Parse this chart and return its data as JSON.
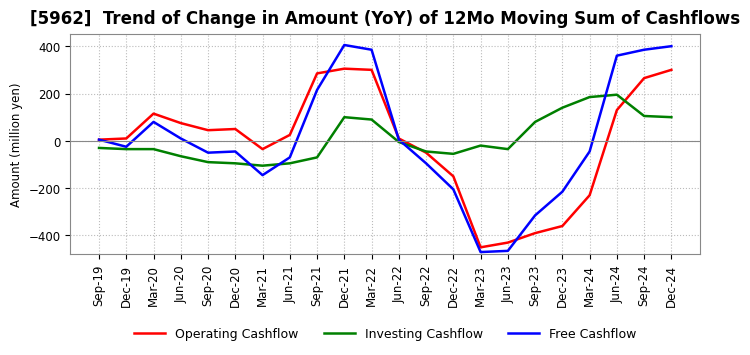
{
  "title": "[5962]  Trend of Change in Amount (YoY) of 12Mo Moving Sum of Cashflows",
  "ylabel": "Amount (million yen)",
  "ylim": [
    -480,
    450
  ],
  "yticks": [
    -400,
    -200,
    0,
    200,
    400
  ],
  "x_labels": [
    "Sep-19",
    "Dec-19",
    "Mar-20",
    "Jun-20",
    "Sep-20",
    "Dec-20",
    "Mar-21",
    "Jun-21",
    "Sep-21",
    "Dec-21",
    "Mar-22",
    "Jun-22",
    "Sep-22",
    "Dec-22",
    "Mar-23",
    "Jun-23",
    "Sep-23",
    "Dec-23",
    "Mar-24",
    "Jun-24",
    "Sep-24",
    "Dec-24"
  ],
  "operating": [
    5,
    10,
    115,
    75,
    45,
    50,
    -35,
    25,
    285,
    305,
    300,
    10,
    -50,
    -150,
    -450,
    -430,
    -390,
    -360,
    -230,
    130,
    265,
    300
  ],
  "investing": [
    -30,
    -35,
    -35,
    -65,
    -90,
    -95,
    -105,
    -95,
    -70,
    100,
    90,
    -5,
    -45,
    -55,
    -20,
    -35,
    80,
    140,
    185,
    195,
    105,
    100
  ],
  "free": [
    5,
    -25,
    80,
    10,
    -50,
    -45,
    -145,
    -70,
    215,
    405,
    385,
    5,
    -95,
    -205,
    -470,
    -465,
    -315,
    -215,
    -45,
    360,
    385,
    400
  ],
  "operating_color": "#ff0000",
  "investing_color": "#008000",
  "free_color": "#0000ff",
  "grid_color": "#bbbbbb",
  "background_color": "#ffffff",
  "title_fontsize": 12,
  "legend_fontsize": 9,
  "axis_fontsize": 8.5,
  "linewidth": 1.8
}
